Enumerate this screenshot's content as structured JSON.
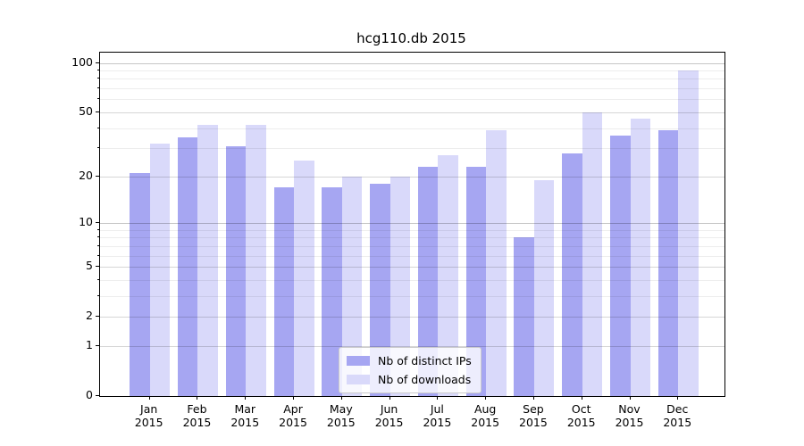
{
  "title": "hcg110.db 2015",
  "chart_data": {
    "type": "bar",
    "title": "hcg110.db 2015",
    "categories": [
      "Jan 2015",
      "Feb 2015",
      "Mar 2015",
      "Apr 2015",
      "May 2015",
      "Jun 2015",
      "Jul 2015",
      "Aug 2015",
      "Sep 2015",
      "Oct 2015",
      "Nov 2015",
      "Dec 2015"
    ],
    "series": [
      {
        "name": "Nb of distinct IPs",
        "color": "#a6a6f2",
        "values": [
          21,
          35,
          31,
          17,
          17,
          18,
          23,
          23,
          8,
          28,
          36,
          39
        ]
      },
      {
        "name": "Nb of downloads",
        "color": "#d9d9fa",
        "values": [
          32,
          42,
          42,
          25,
          20,
          20,
          27,
          39,
          19,
          50,
          46,
          90
        ]
      }
    ],
    "y_axis": {
      "scale": "log1p",
      "ticks": [
        0,
        1,
        2,
        5,
        10,
        20,
        50,
        100
      ],
      "minor_gridlines": [
        3,
        4,
        6,
        7,
        8,
        9,
        30,
        40,
        60,
        70,
        80,
        90
      ],
      "decade_gridlines": [
        10,
        100
      ],
      "ylim": [
        0,
        100
      ]
    },
    "grid": true,
    "legend_position": "lower center",
    "colors": {
      "spine": "#000000",
      "background": "#ffffff"
    }
  }
}
